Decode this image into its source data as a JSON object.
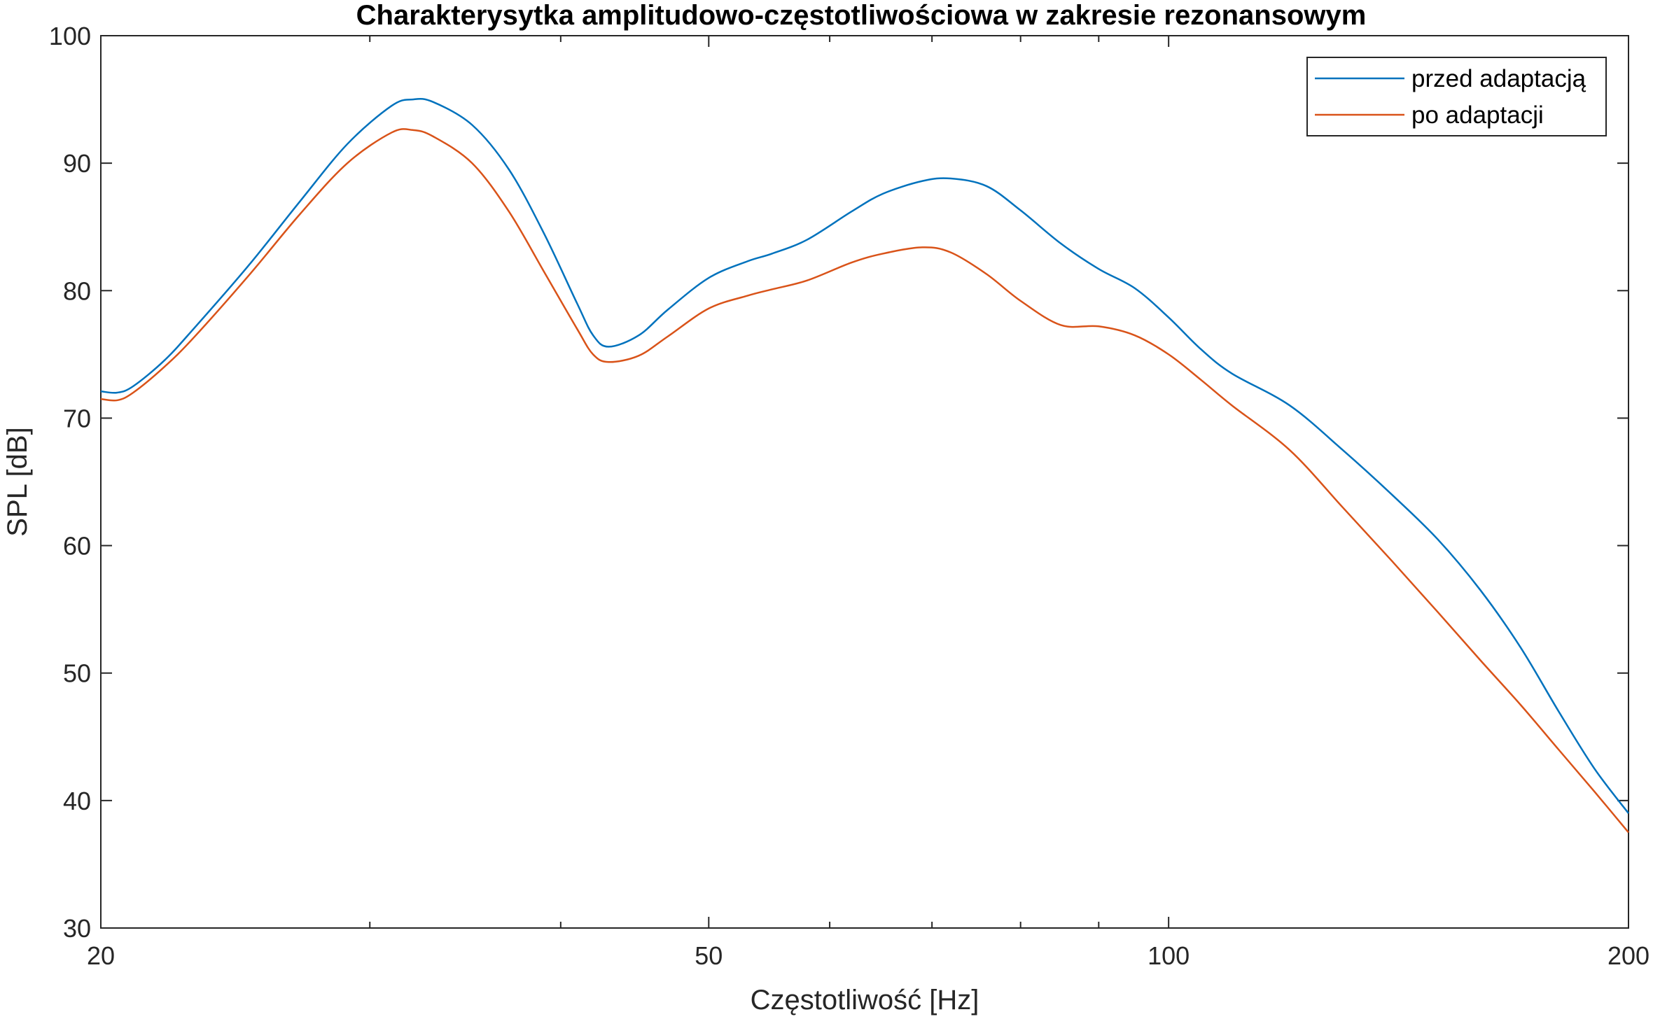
{
  "chart_data": {
    "type": "line",
    "title": "Charakterysytka amplitudowo-częstotliwościowa w zakresie rezonansowym",
    "xlabel": "Częstotliwość [Hz]",
    "ylabel": "SPL [dB]",
    "xscale": "log",
    "xlim": [
      20,
      200
    ],
    "ylim": [
      30,
      100
    ],
    "x_ticks": [
      20,
      50,
      100,
      200
    ],
    "x_tick_labels": [
      "20",
      "50",
      "100",
      "200"
    ],
    "x_minor_ticks": [
      30,
      40,
      60,
      70,
      80,
      90
    ],
    "y_ticks": [
      30,
      40,
      50,
      60,
      70,
      80,
      90,
      100
    ],
    "y_tick_labels": [
      "30",
      "40",
      "50",
      "60",
      "70",
      "80",
      "90",
      "100"
    ],
    "grid": false,
    "legend_position": "top-right",
    "colors": {
      "series1": "#0072BD",
      "series2": "#D95319",
      "axis": "#262626"
    },
    "series": [
      {
        "name": "przed adaptacją",
        "x": [
          20,
          20.5,
          21,
          22,
          23,
          25,
          27,
          29,
          31,
          32,
          33,
          35,
          37,
          39,
          41,
          42,
          43,
          45,
          47,
          50,
          53,
          55,
          58,
          62,
          65,
          69,
          72,
          76,
          80,
          85,
          90,
          95,
          100,
          105,
          110,
          120,
          130,
          140,
          150,
          160,
          170,
          180,
          190,
          200
        ],
        "values": [
          72.1,
          72.0,
          72.5,
          74.5,
          77,
          82,
          87,
          91.5,
          94.5,
          95.0,
          94.8,
          93.0,
          89.5,
          84.5,
          79,
          76.5,
          75.6,
          76.5,
          78.5,
          81.0,
          82.3,
          82.9,
          84.0,
          86.2,
          87.6,
          88.6,
          88.8,
          88.2,
          86.3,
          83.7,
          81.7,
          80.2,
          77.9,
          75.4,
          73.5,
          71.0,
          67.5,
          64.0,
          60.5,
          56.5,
          52.0,
          47.0,
          42.5,
          39.0
        ]
      },
      {
        "name": "po adaptacji",
        "x": [
          20,
          20.5,
          21,
          22,
          23,
          25,
          27,
          29,
          31,
          32,
          33,
          35,
          37,
          39,
          41,
          42,
          43,
          45,
          47,
          50,
          53,
          55,
          58,
          62,
          65,
          69,
          72,
          76,
          80,
          85,
          90,
          95,
          100,
          105,
          110,
          120,
          130,
          140,
          150,
          160,
          170,
          180,
          190,
          200
        ],
        "values": [
          71.5,
          71.4,
          72.0,
          74.0,
          76.3,
          81.2,
          86.0,
          90.0,
          92.4,
          92.6,
          92.1,
          90.0,
          86.2,
          81.5,
          77.0,
          75.0,
          74.4,
          74.9,
          76.4,
          78.6,
          79.6,
          80.1,
          80.8,
          82.2,
          82.9,
          83.4,
          83.0,
          81.3,
          79.2,
          77.3,
          77.2,
          76.5,
          75.0,
          73.0,
          71.0,
          67.5,
          63.0,
          58.8,
          54.8,
          51.0,
          47.5,
          44.0,
          40.7,
          37.5
        ]
      }
    ]
  }
}
